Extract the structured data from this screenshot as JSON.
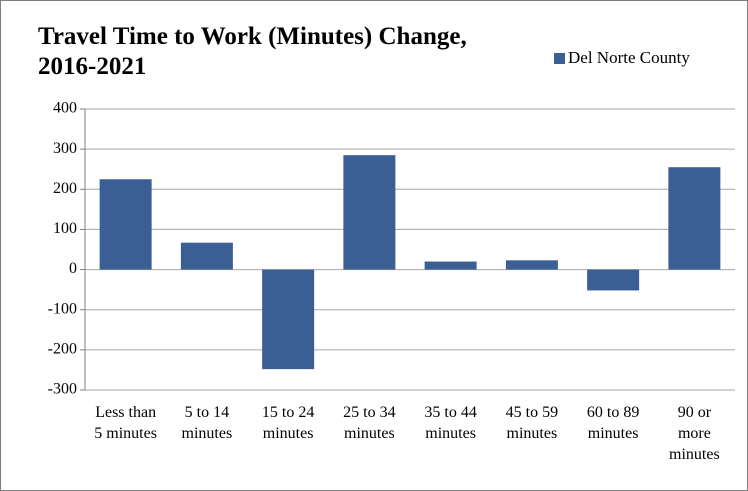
{
  "chart_data": {
    "type": "bar",
    "title": "Travel Time to Work (Minutes) Change, 2016-2021",
    "categories": [
      "Less than 5 minutes",
      "5 to 14 minutes",
      "15 to 24 minutes",
      "25 to 34 minutes",
      "35 to 44 minutes",
      "45 to 59 minutes",
      "60 to 89 minutes",
      "90 or more minutes"
    ],
    "series": [
      {
        "name": "Del Norte County",
        "color": "#3b5f95",
        "values": [
          225,
          67,
          -248,
          285,
          20,
          23,
          -52,
          255
        ]
      }
    ],
    "ylim": [
      -300,
      400
    ],
    "yticks": [
      -300,
      -200,
      -100,
      0,
      100,
      200,
      300,
      400
    ],
    "grid": true,
    "legend": "top-right"
  }
}
